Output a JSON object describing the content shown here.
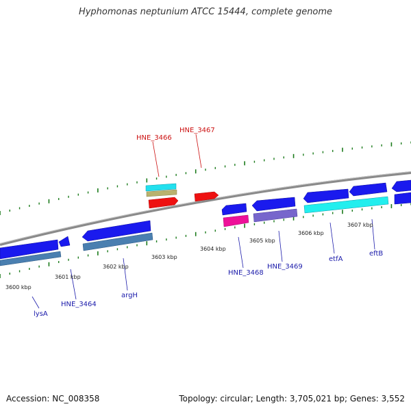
{
  "title": "Hyphomonas neptunium ATCC 15444, complete genome",
  "accession": "Accession: NC_008358",
  "topology": "Topology: circular; Length: 3,705,021 bp; Genes: 3,552",
  "kbp_labels": [
    "3600 kbp",
    "3601 kbp",
    "3602 kbp",
    "3603 kbp",
    "3604 kbp",
    "3605 kbp",
    "3606 kbp",
    "3607 kbp"
  ],
  "genes_top": [
    "HNE_3466",
    "HNE_3467"
  ],
  "genes_bottom": [
    "lysA",
    "HNE_3464",
    "argH",
    "HNE_3468",
    "HNE_3469",
    "etfA",
    "eftB"
  ],
  "colors": {
    "backbone": "#888888",
    "tick": "#1a7a1a",
    "gene_forward": "#1a1aee",
    "gene_red": "#ee1111",
    "cds_steelblue": "#4a7fb0",
    "cds_cyan": "#22eeee",
    "cds_magenta": "#ee1199",
    "cds_slate": "#7766cc",
    "cds_olive": "#b8b070",
    "label_red": "#cc1111",
    "label_blue": "#1a1aaa"
  }
}
